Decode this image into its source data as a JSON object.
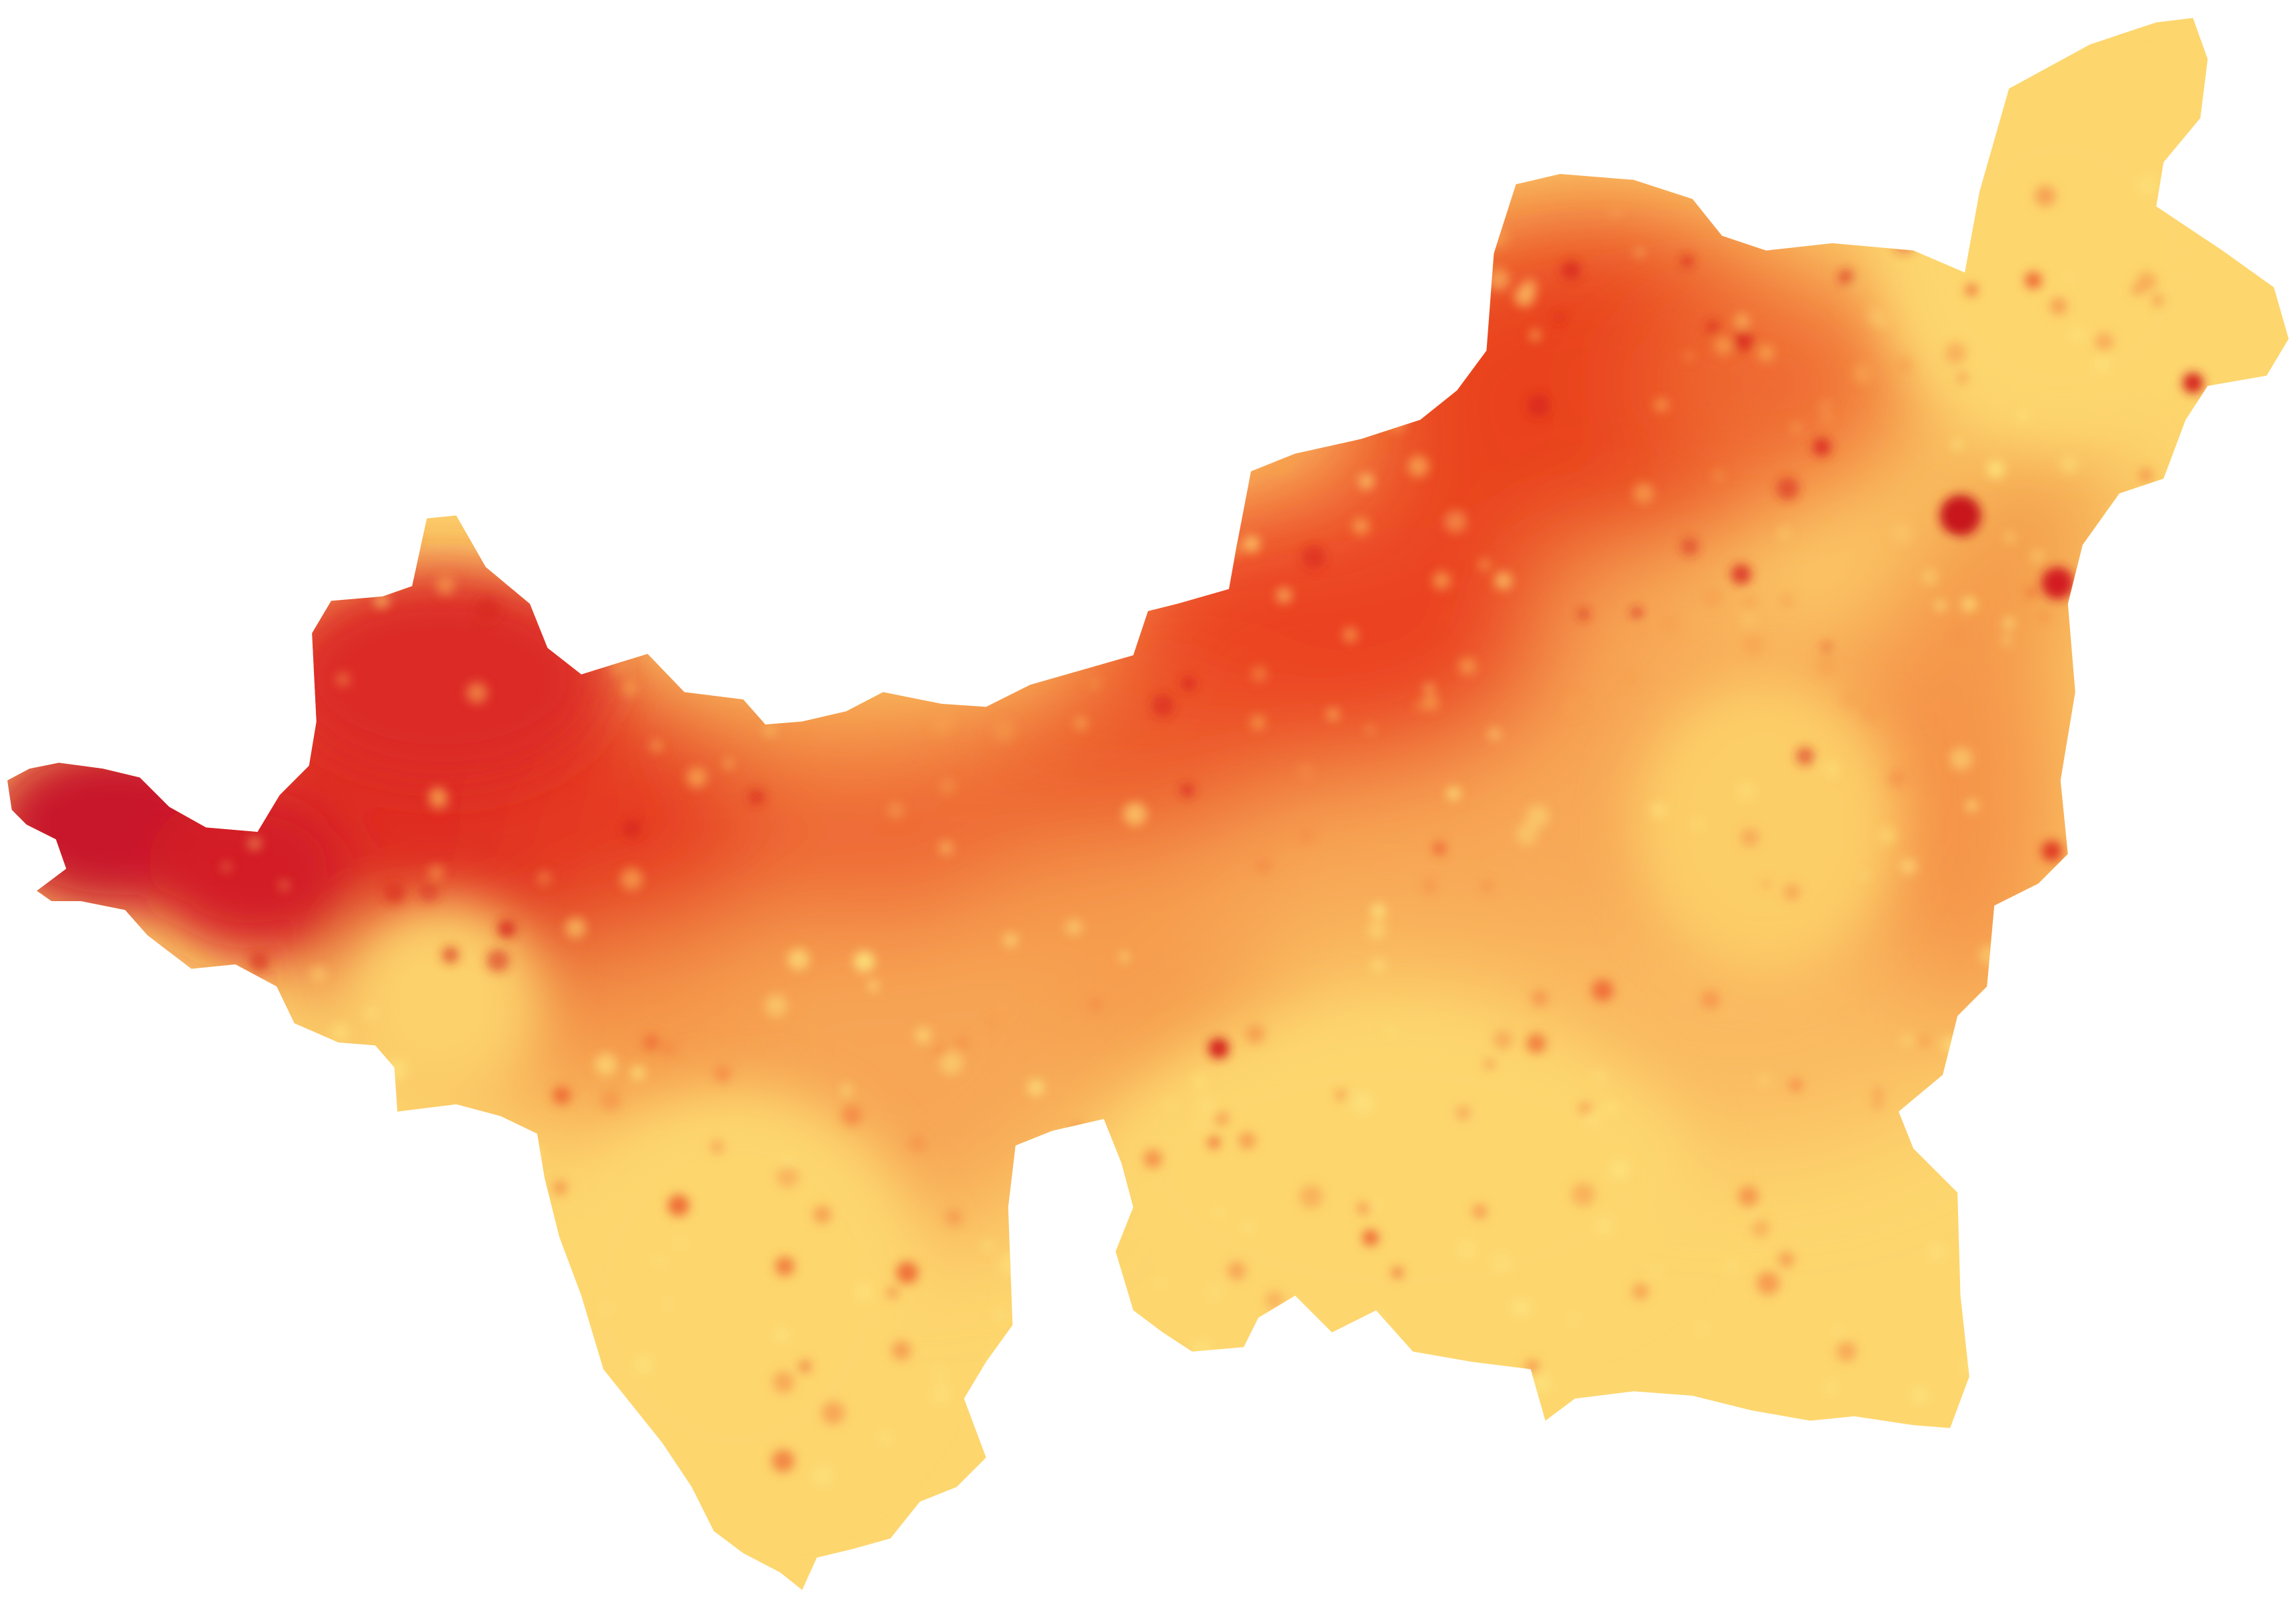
{
  "map": {
    "kind": "choropleth-heatmap",
    "labels_shown": false,
    "color_scale": {
      "low": "#fdd66e",
      "mid_low": "#fbb75d",
      "mid": "#f48744",
      "mid_high": "#ea4a26",
      "high": "#c2122a"
    },
    "background": "#ffffff"
  }
}
